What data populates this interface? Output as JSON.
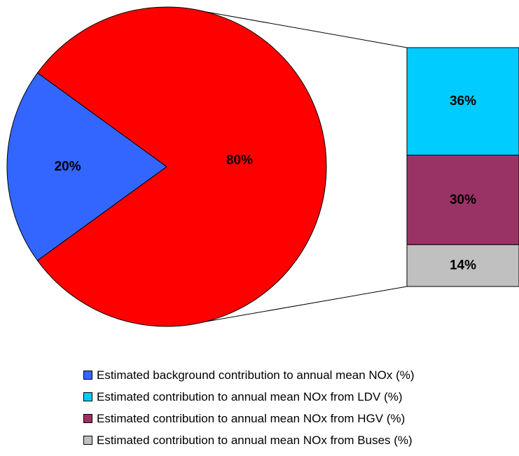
{
  "chart_data": {
    "type": "bar-of-pie",
    "pie": {
      "slices": [
        {
          "name": "Estimated background contribution to annual mean NOx (%)",
          "value": 20,
          "label": "20%",
          "color": "#3366FF"
        },
        {
          "name": "",
          "value": 80,
          "label": "80%",
          "color": "#FF0000"
        }
      ]
    },
    "bar": {
      "segments": [
        {
          "name": "Estimated contribution to annual mean NOx from LDV (%)",
          "value": 36,
          "label": "36%",
          "color": "#00CCFF"
        },
        {
          "name": "Estimated contribution to annual mean NOx from HGV (%)",
          "value": 30,
          "label": "30%",
          "color": "#993366"
        },
        {
          "name": "Estimated contribution to annual mean NOx from Buses (%)",
          "value": 14,
          "label": "14%",
          "color": "#C0C0C0"
        }
      ]
    },
    "legend": {
      "placement": "bottom",
      "entries": [
        {
          "label": "Estimated background contribution to annual mean NOx (%)",
          "color": "#3366FF"
        },
        {
          "label": "Estimated contribution to annual mean NOx from LDV (%)",
          "color": "#00CCFF"
        },
        {
          "label": "Estimated contribution to annual mean NOx from HGV (%)",
          "color": "#993366"
        },
        {
          "label": "Estimated contribution to annual mean NOx from Buses (%)",
          "color": "#C0C0C0"
        }
      ]
    }
  }
}
